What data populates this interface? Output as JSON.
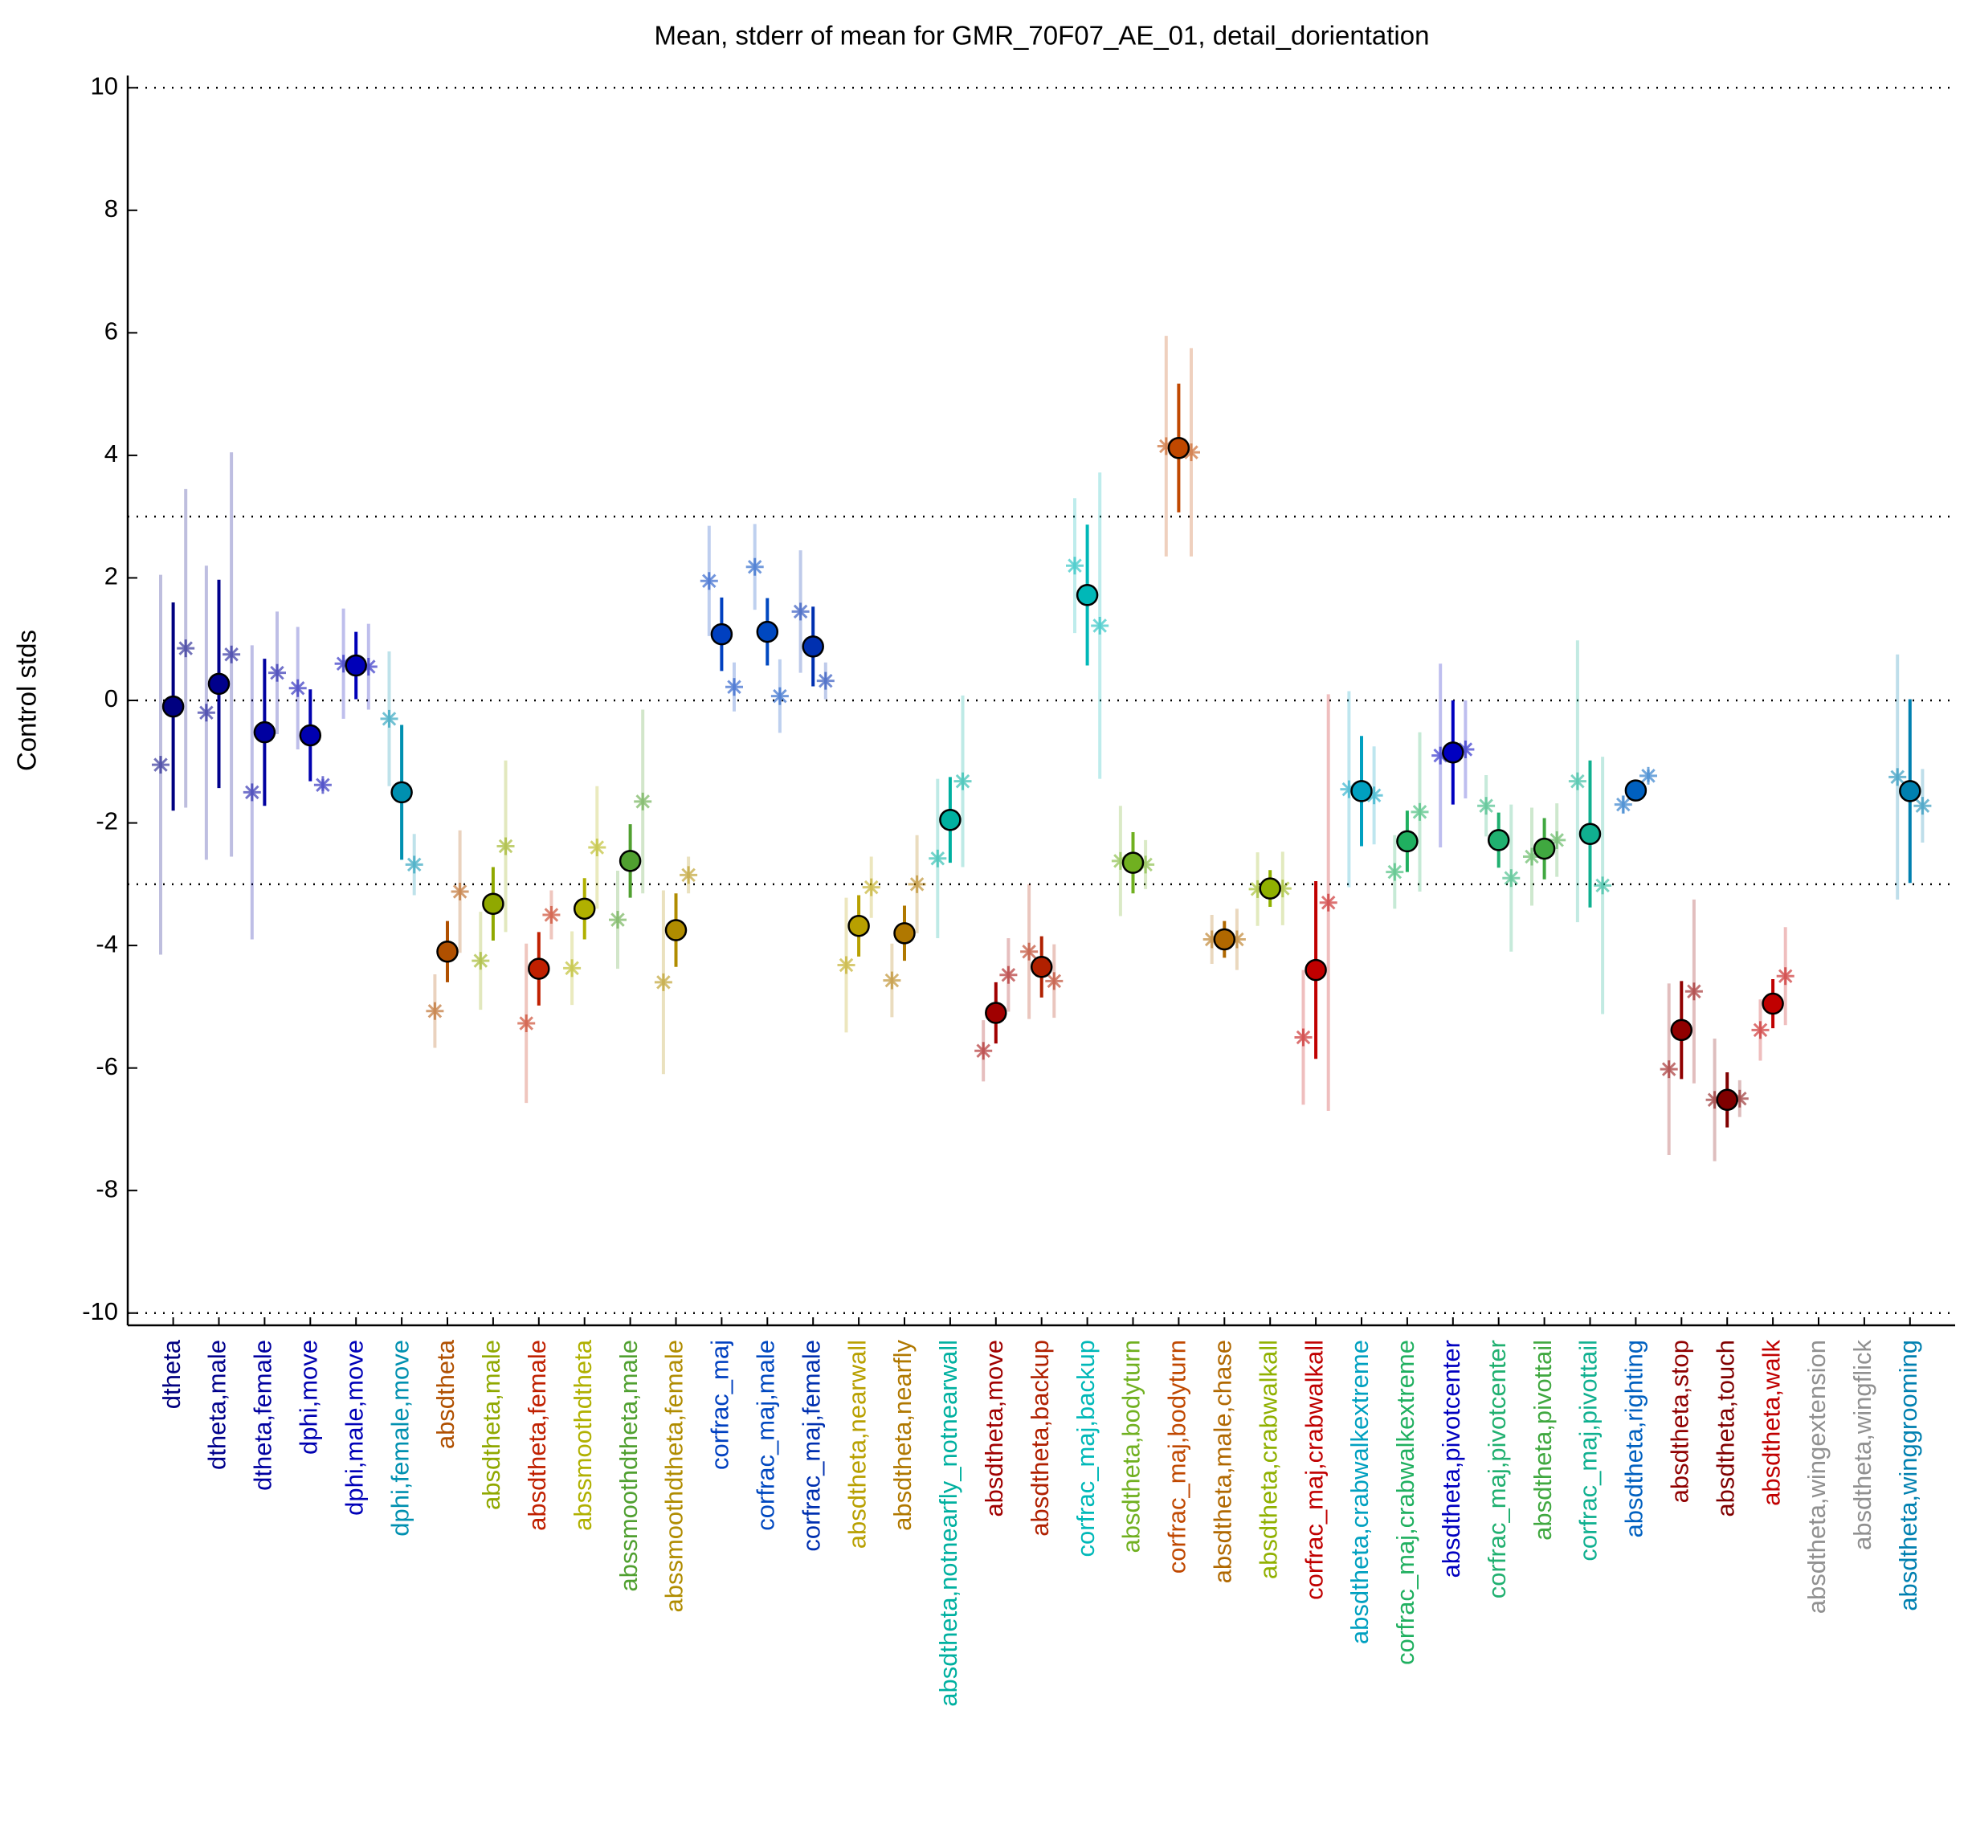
{
  "chart_data": {
    "type": "errorbar",
    "title": "Mean, stderr of mean for GMR_70F07_AE_01, detail_dorientation",
    "ylabel": "Control stds",
    "ylim": [
      -10.2,
      10.2
    ],
    "yticks": [
      -10,
      -8,
      -6,
      -4,
      -2,
      0,
      2,
      4,
      6,
      8,
      10
    ],
    "reference_lines": [
      -10,
      -3,
      0,
      3,
      10
    ],
    "categories": [
      "dtheta",
      "dtheta,male",
      "dtheta,female",
      "dphi,move",
      "dphi,male,move",
      "dphi,female,move",
      "absdtheta",
      "absdtheta,male",
      "absdtheta,female",
      "abssmoothdtheta",
      "abssmoothdtheta,male",
      "abssmoothdtheta,female",
      "corfrac_maj",
      "corfrac_maj,male",
      "corfrac_maj,female",
      "absdtheta,nearwall",
      "absdtheta,nearfly",
      "absdtheta,notnearfly_notnearwall",
      "absdtheta,move",
      "absdtheta,backup",
      "corfrac_maj,backup",
      "absdtheta,bodyturn",
      "corfrac_maj,bodyturn",
      "absdtheta,male,chase",
      "absdtheta,crabwalkall",
      "corfrac_maj,crabwalkall",
      "absdtheta,crabwalkextreme",
      "corfrac_maj,crabwalkextreme",
      "absdtheta,pivotcenter",
      "corfrac_maj,pivotcenter",
      "absdtheta,pivottail",
      "corfrac_maj,pivottail",
      "absdtheta,righting",
      "absdtheta,stop",
      "absdtheta,touch",
      "absdtheta,walk",
      "absdtheta,wingextension",
      "absdtheta,wingflick",
      "absdtheta,winggrooming"
    ],
    "colors": [
      "#000080",
      "#00008c",
      "#0000a0",
      "#0000b0",
      "#0000b8",
      "#0090b0",
      "#b05000",
      "#90a800",
      "#c02000",
      "#b0b000",
      "#50a030",
      "#b08c00",
      "#0040c0",
      "#0048c0",
      "#0030b0",
      "#b8a000",
      "#b07800",
      "#00b0a0",
      "#a00000",
      "#b02000",
      "#00b8b8",
      "#70b020",
      "#c04800",
      "#b06800",
      "#90b000",
      "#c00000",
      "#00a0c0",
      "#20b060",
      "#0000c0",
      "#20b070",
      "#40a840",
      "#10b090",
      "#0060c0",
      "#900000",
      "#800000",
      "#c00000",
      "#909090",
      "#909090",
      "#0080b0"
    ],
    "means": [
      -0.1,
      0.27,
      -0.52,
      -0.57,
      0.57,
      -1.5,
      -4.1,
      -3.32,
      -4.38,
      -3.4,
      -2.62,
      -3.75,
      1.08,
      1.12,
      0.88,
      -3.68,
      -3.8,
      -1.95,
      -5.1,
      -4.35,
      1.72,
      -2.65,
      4.12,
      -3.9,
      -3.07,
      -4.4,
      -1.48,
      -2.3,
      -0.85,
      -2.28,
      -2.42,
      -2.18,
      -1.47,
      -5.38,
      -6.52,
      -4.95,
      null,
      null,
      -1.48
    ],
    "errors": [
      1.7,
      1.7,
      1.2,
      0.75,
      0.55,
      1.1,
      0.5,
      0.6,
      0.6,
      0.5,
      0.6,
      0.6,
      0.6,
      0.55,
      0.65,
      0.5,
      0.45,
      0.7,
      0.5,
      0.5,
      1.15,
      0.5,
      1.05,
      0.3,
      0.3,
      1.45,
      0.9,
      0.5,
      0.85,
      0.45,
      0.5,
      1.2,
      0.1,
      0.8,
      0.45,
      0.4,
      null,
      null,
      1.5
    ],
    "left_values": [
      -1.05,
      -0.2,
      -1.5,
      0.2,
      0.6,
      -0.3,
      -5.07,
      -4.25,
      -5.27,
      -4.37,
      -3.58,
      -4.6,
      1.95,
      2.18,
      1.45,
      -4.32,
      -4.57,
      -2.58,
      -5.72,
      -4.1,
      2.2,
      -2.62,
      4.15,
      -3.9,
      -3.08,
      -5.5,
      -1.45,
      -2.8,
      -0.9,
      -1.72,
      -2.55,
      -1.32,
      -1.7,
      -6.02,
      -6.52,
      -5.38,
      null,
      null,
      -1.25
    ],
    "left_errors": [
      3.1,
      2.4,
      2.4,
      1.0,
      0.9,
      1.1,
      0.6,
      0.8,
      1.3,
      0.6,
      0.8,
      1.5,
      0.9,
      0.7,
      1.0,
      1.1,
      0.6,
      1.3,
      0.5,
      1.1,
      1.1,
      0.9,
      1.8,
      0.4,
      0.6,
      1.1,
      1.6,
      0.6,
      1.5,
      0.5,
      0.8,
      2.3,
      0.15,
      1.4,
      1.0,
      0.5,
      null,
      null,
      2.0
    ],
    "right_values": [
      0.85,
      0.75,
      0.45,
      -1.38,
      0.55,
      -2.68,
      -3.12,
      -2.38,
      -3.5,
      -2.4,
      -1.65,
      -2.85,
      0.22,
      0.07,
      0.32,
      -3.05,
      -3.0,
      -1.32,
      -4.48,
      -4.58,
      1.22,
      -2.68,
      4.05,
      -3.9,
      -3.07,
      -3.3,
      -1.55,
      -1.82,
      -0.8,
      -2.9,
      -2.28,
      -3.02,
      -1.23,
      -4.75,
      -6.5,
      -4.5,
      null,
      null,
      -1.72
    ],
    "right_errors": [
      2.6,
      3.3,
      1.0,
      0.1,
      0.7,
      0.5,
      1.0,
      1.4,
      0.4,
      1.0,
      1.5,
      0.3,
      0.4,
      0.6,
      0.3,
      0.5,
      0.8,
      1.4,
      0.6,
      0.6,
      2.5,
      0.4,
      1.7,
      0.5,
      0.6,
      3.4,
      0.8,
      1.3,
      0.8,
      1.2,
      0.6,
      2.1,
      0.1,
      1.5,
      0.3,
      0.8,
      null,
      null,
      0.6
    ]
  }
}
